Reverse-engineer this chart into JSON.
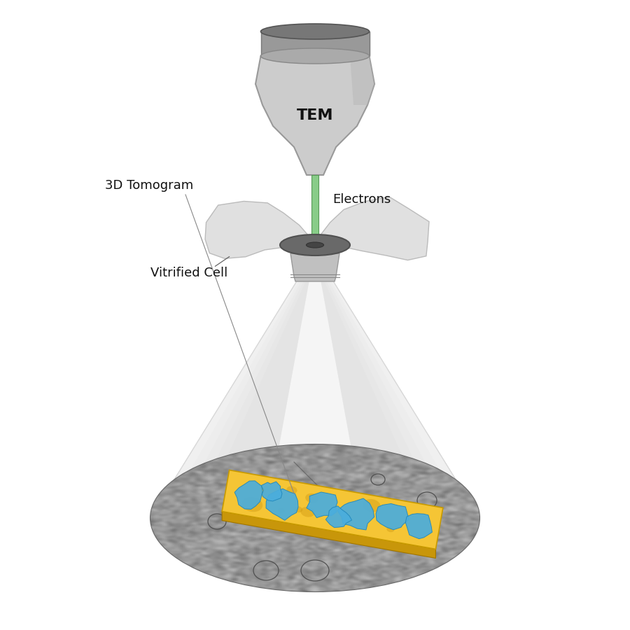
{
  "background_color": "#ffffff",
  "tem_label": "TEM",
  "electrons_label": "Electrons",
  "vitrified_label": "Vitrified Cell",
  "tomogram_label": "3D Tomogram",
  "tem_body_color": "#cccccc",
  "tem_top_color": "#888888",
  "electron_beam_color": "#88cc88",
  "tomogram_yellow": "#f5c535",
  "tomogram_blue": "#4aaddd",
  "label_fontsize": 13,
  "title_fontsize": 16
}
